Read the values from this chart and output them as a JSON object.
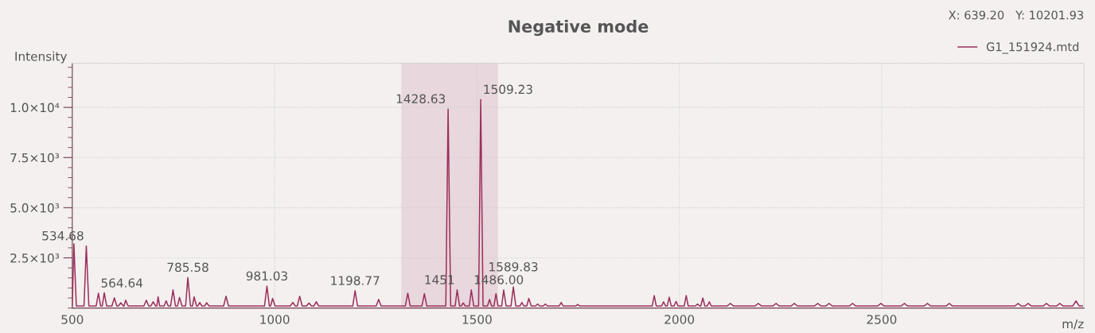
{
  "chart_data": {
    "type": "line",
    "title": "Negative mode",
    "xlabel": "m/z",
    "ylabel": "Intensity",
    "xlim": [
      500,
      3000
    ],
    "xticks": [
      500,
      1000,
      1500,
      2000,
      2500
    ],
    "ylim": [
      0,
      12200
    ],
    "yticks": [
      {
        "value": 2500,
        "label": "2.5×10³"
      },
      {
        "value": 5000,
        "label": "5.0×10³"
      },
      {
        "value": 7500,
        "label": "7.5×10³"
      },
      {
        "value": 10000,
        "label": "1.0×10⁴"
      }
    ],
    "grid": true,
    "legend": "top right",
    "marker": "none",
    "line_style": "solid",
    "bands": [
      {
        "axis": "x",
        "from": 1313,
        "to": 1552,
        "color": "#e8d7dc"
      }
    ],
    "annotations": [
      "X: 639.20   Y: 10201.93",
      {
        "text": "534.68",
        "x": 534.68,
        "y": 3090
      },
      {
        "text": "564.64",
        "x": 564.64,
        "y": 740
      },
      {
        "text": "785.58",
        "x": 785.58,
        "y": 1520
      },
      {
        "text": "981.03",
        "x": 981.03,
        "y": 1090
      },
      {
        "text": "1198.77",
        "x": 1198.77,
        "y": 860
      },
      {
        "text": "1428.63",
        "x": 1428.63,
        "y": 9920
      },
      {
        "text": "1451",
        "x": 1451,
        "y": 900
      },
      {
        "text": "1486.00",
        "x": 1486,
        "y": 900
      },
      {
        "text": "1509.23",
        "x": 1509.23,
        "y": 10390
      },
      {
        "text": "1589.83",
        "x": 1589.83,
        "y": 1050
      }
    ],
    "series": [
      {
        "name": "G1_151924.mtd",
        "color": "#9b2f5c",
        "x": [
          500,
          504,
          510,
          529,
          534.68,
          541,
          559,
          564.64,
          570,
          574,
          579,
          585,
          598,
          604,
          610,
          614,
          620,
          626,
          628,
          632,
          638,
          677,
          683,
          689,
          694,
          700,
          706,
          709,
          712,
          716,
          727,
          732,
          737,
          743,
          749,
          755,
          760,
          765,
          771,
          780,
          785.58,
          792,
          797,
          801,
          807,
          810,
          815,
          820,
          827,
          832,
          838,
          874,
          880,
          886,
          975,
          981.03,
          987,
          990,
          995,
          1001,
          1039,
          1045,
          1051,
          1056,
          1062,
          1068,
          1079,
          1085,
          1091,
          1097,
          1103,
          1109,
          1193,
          1198.77,
          1205,
          1251,
          1257,
          1263,
          1323,
          1329,
          1335,
          1364,
          1370,
          1376,
          1423,
          1428.63,
          1435,
          1446,
          1451,
          1457,
          1461,
          1466,
          1471,
          1481,
          1486,
          1492,
          1504,
          1509.23,
          1515,
          1526,
          1531,
          1536,
          1542,
          1547,
          1552,
          1561,
          1566,
          1572,
          1584,
          1589.83,
          1596,
          1606,
          1611,
          1616,
          1623,
          1628,
          1634,
          1645,
          1650,
          1655,
          1664,
          1669,
          1674,
          1703,
          1708,
          1713,
          1744,
          1749,
          1754,
          1933,
          1938,
          1943,
          1956,
          1961,
          1966,
          1970,
          1975,
          1980,
          1987,
          1992,
          1997,
          2012,
          2017,
          2022,
          2040,
          2045,
          2050,
          2053,
          2058,
          2063,
          2069,
          2074,
          2079,
          2118,
          2126,
          2134,
          2187,
          2195,
          2203,
          2231,
          2239,
          2247,
          2276,
          2284,
          2292,
          2334,
          2342,
          2350,
          2362,
          2370,
          2378,
          2420,
          2428,
          2436,
          2490,
          2498,
          2506,
          2548,
          2556,
          2564,
          2605,
          2613,
          2621,
          2659,
          2667,
          2675,
          2829,
          2837,
          2845,
          2854,
          2862,
          2870,
          2899,
          2907,
          2915,
          2932,
          2940,
          2948,
          2972,
          2980,
          2988,
          2996
        ],
        "values": [
          100,
          3200,
          100,
          100,
          3090,
          100,
          100,
          740,
          100,
          100,
          760,
          100,
          100,
          510,
          100,
          100,
          260,
          100,
          100,
          390,
          100,
          100,
          390,
          100,
          100,
          310,
          100,
          100,
          560,
          100,
          100,
          360,
          100,
          100,
          900,
          100,
          100,
          530,
          100,
          100,
          1520,
          100,
          100,
          560,
          100,
          100,
          280,
          100,
          100,
          260,
          100,
          100,
          590,
          100,
          100,
          1090,
          100,
          100,
          480,
          100,
          100,
          280,
          100,
          100,
          590,
          100,
          100,
          250,
          100,
          100,
          310,
          100,
          100,
          860,
          100,
          100,
          430,
          100,
          100,
          740,
          100,
          100,
          720,
          100,
          100,
          9920,
          100,
          100,
          900,
          100,
          100,
          250,
          100,
          100,
          900,
          100,
          100,
          10390,
          100,
          100,
          430,
          100,
          100,
          720,
          100,
          100,
          900,
          100,
          100,
          1050,
          100,
          100,
          280,
          100,
          100,
          480,
          100,
          100,
          200,
          100,
          100,
          200,
          100,
          100,
          280,
          100,
          100,
          180,
          100,
          100,
          620,
          100,
          100,
          310,
          100,
          100,
          540,
          100,
          100,
          330,
          100,
          100,
          620,
          100,
          100,
          200,
          100,
          100,
          500,
          100,
          100,
          310,
          100,
          100,
          230,
          100,
          100,
          230,
          100,
          100,
          230,
          100,
          100,
          230,
          100,
          100,
          230,
          100,
          100,
          230,
          100,
          100,
          230,
          100,
          100,
          230,
          100,
          100,
          230,
          100,
          100,
          230,
          100,
          100,
          230,
          100,
          100,
          230,
          100,
          100,
          230,
          100,
          100,
          230,
          100,
          100,
          230,
          100,
          100,
          350,
          100,
          100
        ]
      }
    ]
  }
}
